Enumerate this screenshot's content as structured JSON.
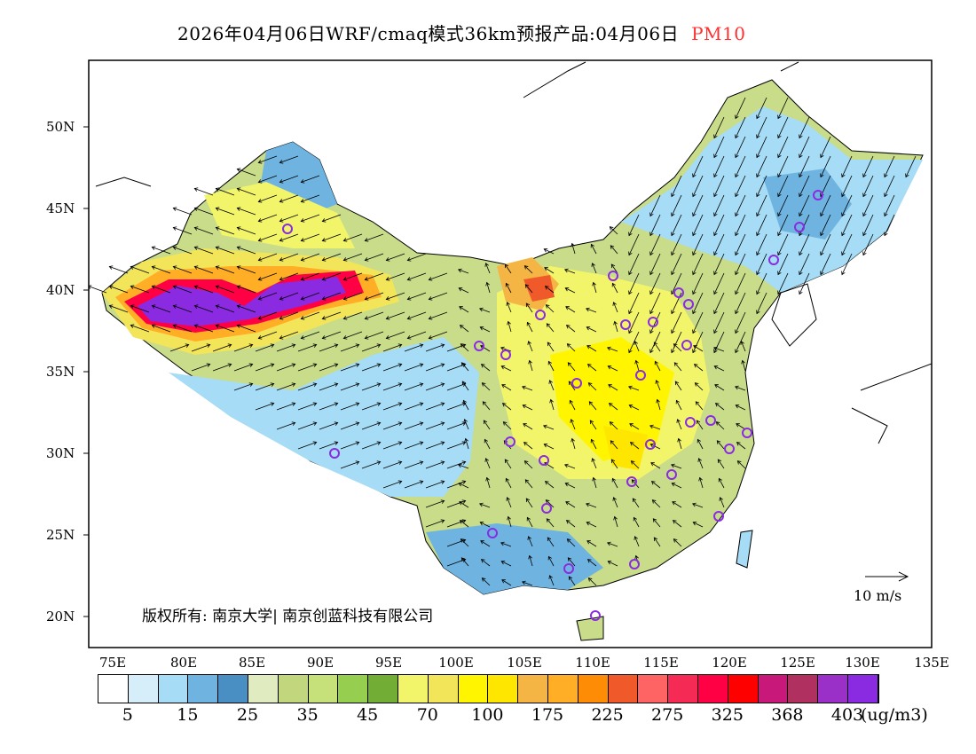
{
  "title": {
    "text": "2026年04月06日WRF/cmaq模式36km预报产品:04月06日",
    "variable": "PM10"
  },
  "axes": {
    "lat_labels": [
      "50N",
      "45N",
      "40N",
      "35N",
      "30N",
      "25N",
      "20N"
    ],
    "lon_labels": [
      "75E",
      "80E",
      "85E",
      "90E",
      "95E",
      "100E",
      "105E",
      "110E",
      "115E",
      "120E",
      "125E",
      "130E",
      "135E"
    ]
  },
  "colorbar": {
    "colors": [
      "#ffffff",
      "#d6eefa",
      "#a6dcf5",
      "#6fb4e0",
      "#4a8fc4",
      "#e0ebc0",
      "#c2d67e",
      "#c6e07a",
      "#96cf50",
      "#72ad36",
      "#f2f56a",
      "#f2e55a",
      "#fff500",
      "#ffe600",
      "#f5b545",
      "#ffae25",
      "#ff8c05",
      "#f05a2a",
      "#ff6464",
      "#f52a55",
      "#ff0045",
      "#ff0000",
      "#c8197a",
      "#b03060",
      "#9b30c8",
      "#8a2be2"
    ],
    "labels": [
      "5",
      "15",
      "25",
      "35",
      "45",
      "70",
      "100",
      "175",
      "225",
      "275",
      "325",
      "368",
      "403"
    ],
    "unit": "(ug/m3)"
  },
  "copyright": "版权所有: 南京大学| 南京创蓝科技有限公司",
  "wind_scale": "10 m/s",
  "colors": {
    "station_marker": "#8a2be2",
    "title_variable": "#ff3030"
  }
}
